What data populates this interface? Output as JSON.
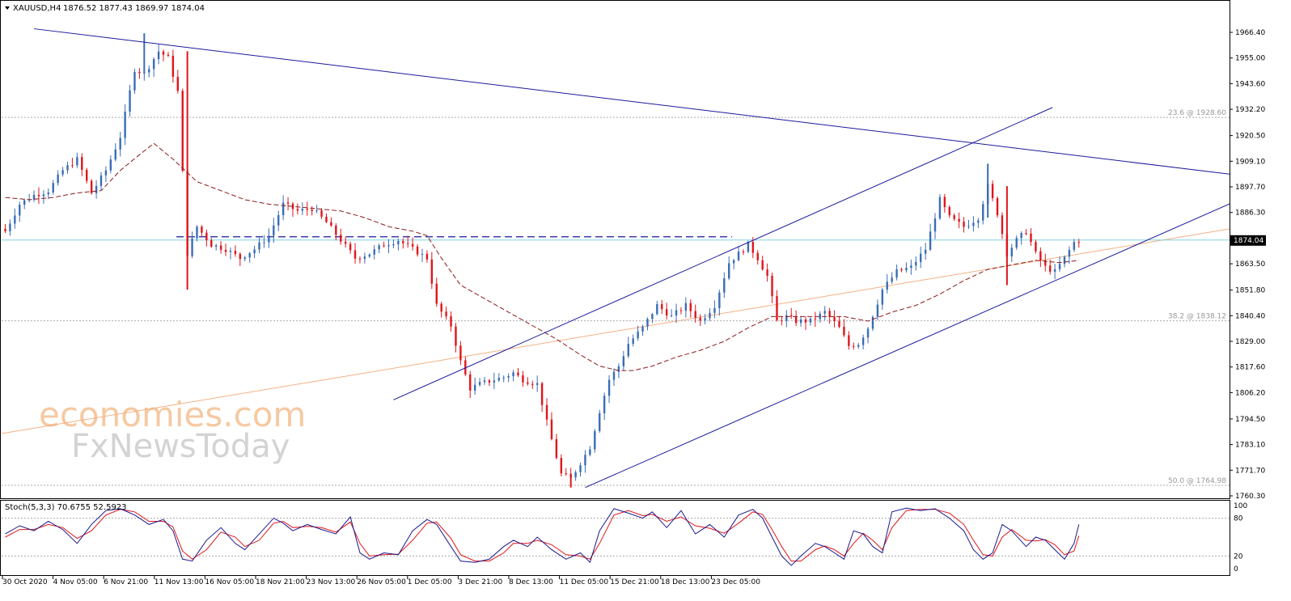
{
  "header": {
    "symbol": "XAUUSD,H4",
    "ohlc": "1876.52 1877.43 1869.97 1874.04"
  },
  "watermark": {
    "line1": "economies.com",
    "line2": "FxNewsToday"
  },
  "colors": {
    "bull": "#3a6db5",
    "bear": "#e0151b",
    "trendline": "#1a1a9e",
    "ma": "#8b1a1a",
    "stoch_main": "#1a1a8c",
    "stoch_signal": "#e0151b",
    "fib": "#aaaaaa",
    "price_line": "#7fd3e0",
    "orange_line": "#f4b183"
  },
  "chart_data": [
    {
      "type": "candlestick",
      "title": "XAUUSD,H4",
      "ylim": [
        1760.3,
        1970.0
      ],
      "y_ticks": [
        "1966.40",
        "1955.00",
        "1943.60",
        "1932.20",
        "1920.50",
        "1909.10",
        "1897.70",
        "1886.30",
        "1863.50",
        "1851.80",
        "1840.40",
        "1829.00",
        "1817.60",
        "1806.20",
        "1794.50",
        "1783.10",
        "1771.70",
        "1760.30"
      ],
      "x_ticks": [
        "30 Oct 2020",
        "4 Nov 05:00",
        "6 Nov 21:00",
        "11 Nov 13:00",
        "16 Nov 05:00",
        "18 Nov 21:00",
        "23 Nov 13:00",
        "26 Nov 05:00",
        "1 Dec 05:00",
        "3 Dec 21:00",
        "8 Dec 13:00",
        "11 Dec 05:00",
        "15 Dec 21:00",
        "18 Dec 13:00",
        "23 Dec 05:00"
      ],
      "last_price": "1874.04",
      "fib_levels": [
        {
          "label": "23.6 @ 1928.60",
          "value": 1928.6
        },
        {
          "label": "38.2 @ 1838.12",
          "value": 1838.12
        },
        {
          "label": "50.0 @ 1764.98",
          "value": 1764.98
        }
      ],
      "resistance_level": 1875.5,
      "close_path": [
        [
          0,
          1878
        ],
        [
          6,
          1890
        ],
        [
          12,
          1894
        ],
        [
          18,
          1896
        ],
        [
          24,
          1905
        ],
        [
          30,
          1910
        ],
        [
          36,
          1895
        ],
        [
          42,
          1905
        ],
        [
          48,
          1920
        ],
        [
          54,
          1950
        ],
        [
          58,
          1948
        ],
        [
          64,
          1958
        ],
        [
          68,
          1955
        ],
        [
          72,
          1940
        ],
        [
          76,
          1868
        ],
        [
          80,
          1880
        ],
        [
          86,
          1872
        ],
        [
          92,
          1870
        ],
        [
          98,
          1866
        ],
        [
          104,
          1870
        ],
        [
          110,
          1876
        ],
        [
          116,
          1890
        ],
        [
          122,
          1887
        ],
        [
          128,
          1888
        ],
        [
          134,
          1882
        ],
        [
          140,
          1874
        ],
        [
          146,
          1866
        ],
        [
          152,
          1868
        ],
        [
          158,
          1872
        ],
        [
          164,
          1874
        ],
        [
          170,
          1870
        ],
        [
          176,
          1866
        ],
        [
          180,
          1845
        ],
        [
          186,
          1836
        ],
        [
          190,
          1820
        ],
        [
          194,
          1808
        ],
        [
          198,
          1810
        ],
        [
          204,
          1812
        ],
        [
          208,
          1813
        ],
        [
          212,
          1815
        ],
        [
          216,
          1812
        ],
        [
          222,
          1810
        ],
        [
          226,
          1793
        ],
        [
          232,
          1770
        ],
        [
          236,
          1768
        ],
        [
          240,
          1775
        ],
        [
          244,
          1782
        ],
        [
          248,
          1798
        ],
        [
          252,
          1812
        ],
        [
          256,
          1818
        ],
        [
          260,
          1828
        ],
        [
          266,
          1835
        ],
        [
          272,
          1845
        ],
        [
          278,
          1840
        ],
        [
          284,
          1845
        ],
        [
          290,
          1838
        ],
        [
          296,
          1845
        ],
        [
          302,
          1864
        ],
        [
          306,
          1868
        ],
        [
          310,
          1872
        ],
        [
          314,
          1866
        ],
        [
          318,
          1858
        ],
        [
          322,
          1838
        ],
        [
          326,
          1840
        ],
        [
          330,
          1838
        ],
        [
          336,
          1838
        ],
        [
          342,
          1842
        ],
        [
          348,
          1835
        ],
        [
          352,
          1827
        ],
        [
          356,
          1828
        ],
        [
          360,
          1835
        ],
        [
          366,
          1852
        ],
        [
          372,
          1860
        ],
        [
          378,
          1862
        ],
        [
          384,
          1870
        ],
        [
          390,
          1892
        ],
        [
          394,
          1884
        ],
        [
          400,
          1880
        ],
        [
          406,
          1884
        ],
        [
          410,
          1898
        ],
        [
          414,
          1886
        ],
        [
          418,
          1868
        ],
        [
          422,
          1874
        ],
        [
          426,
          1878
        ],
        [
          430,
          1868
        ],
        [
          434,
          1862
        ],
        [
          438,
          1860
        ],
        [
          442,
          1866
        ],
        [
          446,
          1873
        ],
        [
          448,
          1874
        ]
      ],
      "ma_path": [
        [
          0,
          1893
        ],
        [
          10,
          1892
        ],
        [
          20,
          1893
        ],
        [
          30,
          1895
        ],
        [
          40,
          1896
        ],
        [
          48,
          1905
        ],
        [
          56,
          1912
        ],
        [
          62,
          1917
        ],
        [
          70,
          1910
        ],
        [
          80,
          1900
        ],
        [
          90,
          1896
        ],
        [
          100,
          1892
        ],
        [
          110,
          1890
        ],
        [
          120,
          1889
        ],
        [
          130,
          1888
        ],
        [
          140,
          1887
        ],
        [
          150,
          1884
        ],
        [
          160,
          1880
        ],
        [
          170,
          1878
        ],
        [
          176,
          1876
        ],
        [
          182,
          1866
        ],
        [
          190,
          1854
        ],
        [
          200,
          1848
        ],
        [
          210,
          1842
        ],
        [
          220,
          1836
        ],
        [
          230,
          1830
        ],
        [
          240,
          1823
        ],
        [
          248,
          1818
        ],
        [
          256,
          1816
        ],
        [
          262,
          1816
        ],
        [
          270,
          1818
        ],
        [
          280,
          1822
        ],
        [
          290,
          1825
        ],
        [
          300,
          1829
        ],
        [
          310,
          1835
        ],
        [
          320,
          1840
        ],
        [
          330,
          1840
        ],
        [
          340,
          1840
        ],
        [
          350,
          1840
        ],
        [
          360,
          1838
        ],
        [
          370,
          1842
        ],
        [
          380,
          1845
        ],
        [
          390,
          1850
        ],
        [
          400,
          1856
        ],
        [
          410,
          1861
        ],
        [
          420,
          1863
        ],
        [
          430,
          1865
        ],
        [
          440,
          1864
        ],
        [
          448,
          1865
        ]
      ],
      "trendlines": [
        {
          "name": "upper",
          "points": [
            [
              12,
              1968
            ],
            [
              668,
              1883
            ]
          ]
        },
        {
          "name": "channel-top",
          "points": [
            [
              162,
              1803
            ],
            [
              437,
              1933
            ]
          ]
        },
        {
          "name": "channel-bottom",
          "points": [
            [
              242,
              1764
            ],
            [
              517,
              1893
            ]
          ]
        }
      ]
    },
    {
      "type": "line",
      "title": "Stoch(5,3,3) 70.6755 52.5923",
      "ylim": [
        0,
        100
      ],
      "y_ticks": [
        "100",
        "80",
        "20",
        "0"
      ],
      "levels": [
        80,
        20
      ],
      "main": [
        [
          0,
          55
        ],
        [
          6,
          68
        ],
        [
          12,
          60
        ],
        [
          18,
          75
        ],
        [
          24,
          62
        ],
        [
          30,
          40
        ],
        [
          36,
          70
        ],
        [
          42,
          92
        ],
        [
          48,
          95
        ],
        [
          54,
          85
        ],
        [
          60,
          70
        ],
        [
          66,
          78
        ],
        [
          70,
          60
        ],
        [
          74,
          15
        ],
        [
          78,
          12
        ],
        [
          84,
          45
        ],
        [
          90,
          65
        ],
        [
          96,
          40
        ],
        [
          100,
          30
        ],
        [
          106,
          55
        ],
        [
          112,
          80
        ],
        [
          116,
          72
        ],
        [
          120,
          60
        ],
        [
          126,
          70
        ],
        [
          132,
          62
        ],
        [
          138,
          55
        ],
        [
          144,
          82
        ],
        [
          148,
          25
        ],
        [
          152,
          15
        ],
        [
          158,
          25
        ],
        [
          164,
          22
        ],
        [
          170,
          60
        ],
        [
          176,
          78
        ],
        [
          180,
          70
        ],
        [
          186,
          35
        ],
        [
          190,
          12
        ],
        [
          196,
          10
        ],
        [
          202,
          15
        ],
        [
          208,
          35
        ],
        [
          212,
          45
        ],
        [
          218,
          35
        ],
        [
          222,
          50
        ],
        [
          228,
          30
        ],
        [
          234,
          15
        ],
        [
          240,
          25
        ],
        [
          244,
          10
        ],
        [
          248,
          60
        ],
        [
          254,
          95
        ],
        [
          260,
          88
        ],
        [
          266,
          80
        ],
        [
          270,
          90
        ],
        [
          276,
          65
        ],
        [
          282,
          92
        ],
        [
          288,
          55
        ],
        [
          294,
          70
        ],
        [
          300,
          50
        ],
        [
          306,
          85
        ],
        [
          312,
          94
        ],
        [
          316,
          80
        ],
        [
          320,
          50
        ],
        [
          324,
          20
        ],
        [
          328,
          5
        ],
        [
          332,
          20
        ],
        [
          338,
          40
        ],
        [
          342,
          35
        ],
        [
          346,
          25
        ],
        [
          350,
          15
        ],
        [
          354,
          60
        ],
        [
          358,
          55
        ],
        [
          362,
          35
        ],
        [
          366,
          25
        ],
        [
          370,
          90
        ],
        [
          376,
          96
        ],
        [
          382,
          92
        ],
        [
          388,
          95
        ],
        [
          394,
          80
        ],
        [
          400,
          60
        ],
        [
          404,
          30
        ],
        [
          408,
          15
        ],
        [
          412,
          25
        ],
        [
          416,
          70
        ],
        [
          420,
          60
        ],
        [
          426,
          35
        ],
        [
          430,
          50
        ],
        [
          434,
          45
        ],
        [
          438,
          30
        ],
        [
          442,
          15
        ],
        [
          446,
          40
        ],
        [
          448,
          70
        ]
      ],
      "signal": [
        [
          0,
          50
        ],
        [
          6,
          62
        ],
        [
          12,
          62
        ],
        [
          18,
          70
        ],
        [
          24,
          65
        ],
        [
          30,
          48
        ],
        [
          36,
          60
        ],
        [
          42,
          85
        ],
        [
          48,
          94
        ],
        [
          54,
          90
        ],
        [
          60,
          75
        ],
        [
          66,
          75
        ],
        [
          70,
          66
        ],
        [
          74,
          28
        ],
        [
          78,
          15
        ],
        [
          84,
          30
        ],
        [
          90,
          58
        ],
        [
          96,
          50
        ],
        [
          100,
          35
        ],
        [
          106,
          45
        ],
        [
          112,
          72
        ],
        [
          116,
          75
        ],
        [
          120,
          65
        ],
        [
          126,
          67
        ],
        [
          132,
          65
        ],
        [
          138,
          58
        ],
        [
          144,
          74
        ],
        [
          148,
          40
        ],
        [
          152,
          20
        ],
        [
          158,
          22
        ],
        [
          164,
          23
        ],
        [
          170,
          45
        ],
        [
          176,
          72
        ],
        [
          180,
          74
        ],
        [
          186,
          48
        ],
        [
          190,
          22
        ],
        [
          196,
          12
        ],
        [
          202,
          12
        ],
        [
          208,
          25
        ],
        [
          212,
          40
        ],
        [
          218,
          40
        ],
        [
          222,
          45
        ],
        [
          228,
          38
        ],
        [
          234,
          22
        ],
        [
          240,
          20
        ],
        [
          244,
          15
        ],
        [
          248,
          40
        ],
        [
          254,
          85
        ],
        [
          260,
          92
        ],
        [
          266,
          84
        ],
        [
          270,
          86
        ],
        [
          276,
          75
        ],
        [
          282,
          82
        ],
        [
          288,
          68
        ],
        [
          294,
          64
        ],
        [
          300,
          56
        ],
        [
          306,
          72
        ],
        [
          312,
          90
        ],
        [
          316,
          86
        ],
        [
          320,
          62
        ],
        [
          324,
          35
        ],
        [
          328,
          12
        ],
        [
          332,
          12
        ],
        [
          338,
          30
        ],
        [
          342,
          36
        ],
        [
          346,
          30
        ],
        [
          350,
          20
        ],
        [
          354,
          40
        ],
        [
          358,
          56
        ],
        [
          362,
          45
        ],
        [
          366,
          30
        ],
        [
          370,
          65
        ],
        [
          376,
          92
        ],
        [
          382,
          94
        ],
        [
          388,
          94
        ],
        [
          394,
          88
        ],
        [
          400,
          70
        ],
        [
          404,
          45
        ],
        [
          408,
          22
        ],
        [
          412,
          20
        ],
        [
          416,
          50
        ],
        [
          420,
          62
        ],
        [
          426,
          45
        ],
        [
          430,
          44
        ],
        [
          434,
          46
        ],
        [
          438,
          38
        ],
        [
          442,
          22
        ],
        [
          446,
          28
        ],
        [
          448,
          52
        ]
      ]
    }
  ]
}
